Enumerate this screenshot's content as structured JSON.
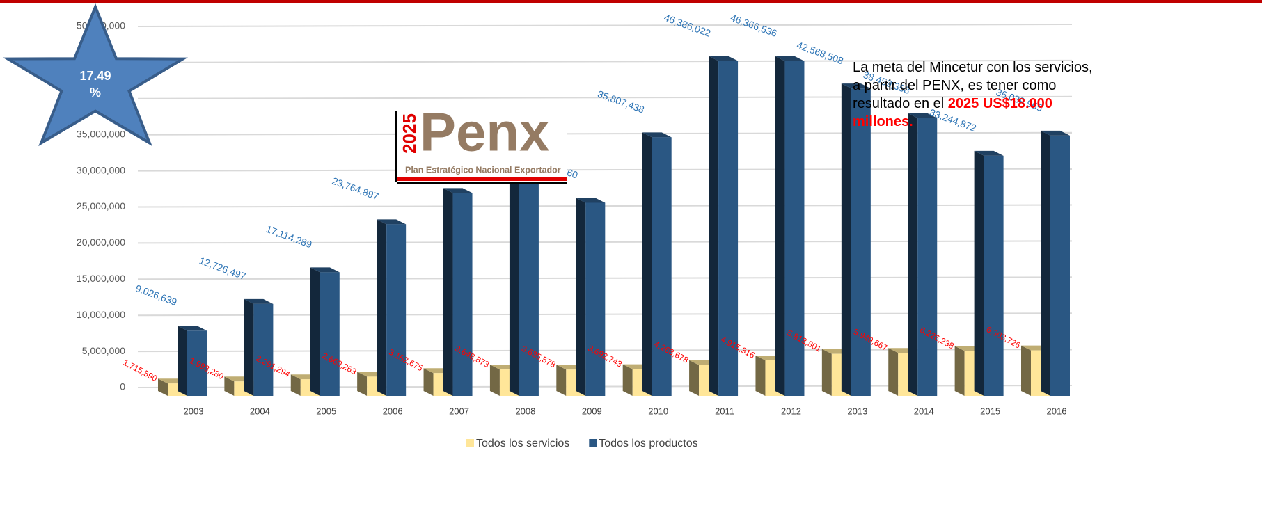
{
  "chart_data": {
    "type": "bar3d",
    "categories": [
      "2003",
      "2004",
      "2005",
      "2006",
      "2007",
      "2008",
      "2009",
      "2010",
      "2011",
      "2012",
      "2013",
      "2014",
      "2015",
      "2016"
    ],
    "series": [
      {
        "name": "Todos los servicios",
        "color": "#ffe699",
        "label_color": "#ff0000",
        "values": [
          1715590,
          1993280,
          2291294,
          2660263,
          3152675,
          3648873,
          3635578,
          3692743,
          4263678,
          4915316,
          5813801,
          5949667,
          6226238,
          6303726
        ],
        "value_labels": [
          "1,715,590",
          "1,993,280",
          "2,291,294",
          "2,660,263",
          "3,152,675",
          "3,648,873",
          "3,635,578",
          "3,692,743",
          "4,263,678",
          "4,915,316",
          "5,813,801",
          "5,949,667",
          "6,226,238",
          "6,303,726"
        ]
      },
      {
        "name": "Todos los productos",
        "color": "#2a5783",
        "label_color": "#2e75b6",
        "values": [
          9026639,
          12726497,
          17114289,
          23764897,
          28094085,
          31018540,
          26738260,
          35807438,
          46386022,
          46366536,
          42568508,
          38459358,
          33244872,
          36039965
        ],
        "value_labels": [
          "9,026,639",
          "12,726,497",
          "17,114,289",
          "23,764,897",
          "28,094,085",
          "31,018,540",
          "26,738,260",
          "35,807,438",
          "46,386,022",
          "46,366,536",
          "42,568,508",
          "38,459,358",
          "33,244,872",
          "36,039,965"
        ]
      }
    ],
    "ylim": [
      0,
      50000000
    ],
    "yticks": [
      0,
      {
        "value": 5000000,
        "label": "5,000,000"
      },
      {
        "value": 10000000,
        "label": "10,000,000"
      },
      {
        "value": 15000000,
        "label": "15,000,000"
      },
      {
        "value": 20000000,
        "label": "20,000,000"
      },
      {
        "value": 25000000,
        "label": "25,000,000"
      },
      {
        "value": 30000000,
        "label": "30,000,000"
      },
      {
        "value": 35000000,
        "label": "35,000,000"
      },
      {
        "value": 40000000,
        "label": "40,000,000"
      },
      {
        "value": 45000000,
        "label": "45,000,000"
      },
      {
        "value": 50000000,
        "label": "50,000,000"
      }
    ],
    "grid": true,
    "legend": "bottom"
  },
  "badge": {
    "value": "17.49",
    "unit": "%"
  },
  "logo": {
    "year": "2025",
    "name": "Penx",
    "subtitle": "Plan Estratégico Nacional Exportador"
  },
  "annotation": {
    "text": "La meta del Mincetur con los servicios, a partir del PENX, es tener como resultado en el ",
    "highlight": "2025 US$18.000 millones."
  }
}
